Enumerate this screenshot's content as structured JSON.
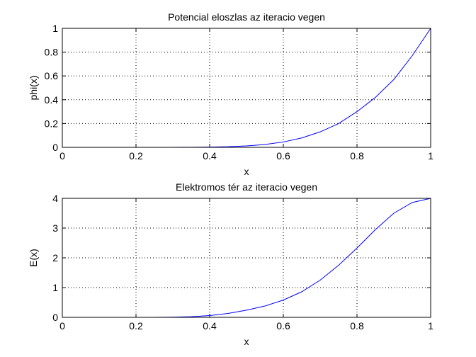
{
  "chart_data": [
    {
      "type": "line",
      "title": "Potencial eloszlas az iteracio vegen",
      "xlabel": "x",
      "ylabel": "phi(x)",
      "xlim": [
        0,
        1
      ],
      "ylim": [
        0,
        1
      ],
      "xticks": [
        0,
        0.2,
        0.4,
        0.6,
        0.8,
        1
      ],
      "xtick_labels": [
        "0",
        "0.2",
        "0.4",
        "0.6",
        "0.8",
        "1"
      ],
      "yticks": [
        0,
        0.2,
        0.4,
        0.6,
        0.8,
        1
      ],
      "ytick_labels": [
        "0",
        "0.2",
        "0.4",
        "0.6",
        "0.8",
        "1"
      ],
      "grid": true,
      "series": [
        {
          "color": "#0000ff",
          "x": [
            0,
            0.05,
            0.1,
            0.15,
            0.2,
            0.25,
            0.3,
            0.35,
            0.4,
            0.45,
            0.5,
            0.55,
            0.6,
            0.65,
            0.7,
            0.75,
            0.8,
            0.85,
            0.9,
            0.95,
            1
          ],
          "y": [
            0,
            0,
            0,
            0,
            0,
            0,
            0,
            0.001,
            0.002,
            0.005,
            0.012,
            0.024,
            0.045,
            0.079,
            0.13,
            0.2,
            0.3,
            0.42,
            0.57,
            0.77,
            1
          ]
        }
      ]
    },
    {
      "type": "line",
      "title": "Elektromos tér az iteracio vegen",
      "xlabel": "x",
      "ylabel": "E(x)",
      "xlim": [
        0,
        1
      ],
      "ylim": [
        0,
        4
      ],
      "xticks": [
        0,
        0.2,
        0.4,
        0.6,
        0.8,
        1
      ],
      "xtick_labels": [
        "0",
        "0.2",
        "0.4",
        "0.6",
        "0.8",
        "1"
      ],
      "yticks": [
        0,
        1,
        2,
        3,
        4
      ],
      "ytick_labels": [
        "0",
        "1",
        "2",
        "3",
        "4"
      ],
      "grid": true,
      "series": [
        {
          "color": "#0000ff",
          "x": [
            0,
            0.05,
            0.1,
            0.15,
            0.2,
            0.25,
            0.3,
            0.35,
            0.4,
            0.45,
            0.5,
            0.55,
            0.6,
            0.65,
            0.7,
            0.75,
            0.8,
            0.85,
            0.9,
            0.95,
            1
          ],
          "y": [
            0,
            0,
            0,
            0,
            0,
            0,
            0.005,
            0.02,
            0.06,
            0.13,
            0.24,
            0.38,
            0.58,
            0.86,
            1.25,
            1.75,
            2.33,
            2.95,
            3.5,
            3.86,
            4.0
          ]
        }
      ]
    }
  ]
}
